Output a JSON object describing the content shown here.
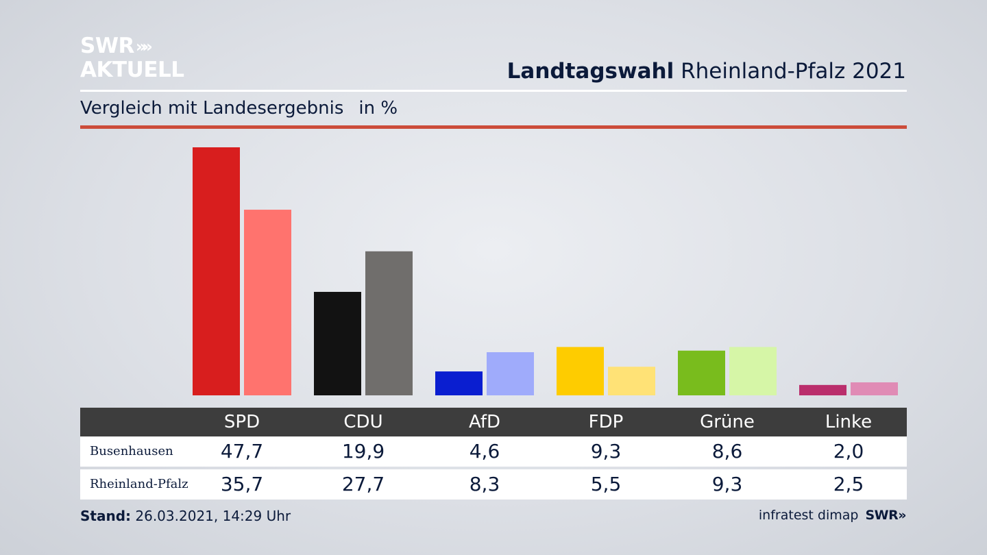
{
  "logo": {
    "line1": "SWR",
    "arrows": "»»",
    "line2": "AKTUELL"
  },
  "header": {
    "title_bold": "Landtagswahl",
    "title_rest": "Rheinland-Pfalz 2021"
  },
  "subtitle": {
    "text": "Vergleich mit Landesergebnis",
    "unit": "in %"
  },
  "colors": {
    "SPD": [
      "#d81e1e",
      "#ff736e"
    ],
    "CDU": [
      "#121212",
      "#706e6c"
    ],
    "AfD": [
      "#0a1ed0",
      "#9fabfb"
    ],
    "FDP": [
      "#fecc00",
      "#ffe276"
    ],
    "Grüne": [
      "#79bc1d",
      "#d6f6a7"
    ],
    "Linke": [
      "#ba2e6c",
      "#e08bb5"
    ]
  },
  "chart_data": {
    "type": "bar",
    "categories": [
      "SPD",
      "CDU",
      "AfD",
      "FDP",
      "Grüne",
      "Linke"
    ],
    "series": [
      {
        "name": "Busenhausen",
        "values": [
          47.7,
          19.9,
          4.6,
          9.3,
          8.6,
          2.0
        ],
        "labels": [
          "47,7",
          "19,9",
          "4,6",
          "9,3",
          "8,6",
          "2,0"
        ]
      },
      {
        "name": "Rheinland-Pfalz",
        "values": [
          35.7,
          27.7,
          8.3,
          5.5,
          9.3,
          2.5
        ],
        "labels": [
          "35,7",
          "27,7",
          "8,3",
          "5,5",
          "9,3",
          "2,5"
        ]
      }
    ],
    "title": "Landtagswahl Rheinland-Pfalz 2021",
    "subtitle": "Vergleich mit Landesergebnis",
    "ylabel": "in %",
    "ylim": [
      0,
      47.7
    ],
    "grid": false
  },
  "footer": {
    "stand_label": "Stand:",
    "stand_value": "26.03.2021, 14:29 Uhr",
    "source": "infratest dimap",
    "brand": "SWR»"
  }
}
